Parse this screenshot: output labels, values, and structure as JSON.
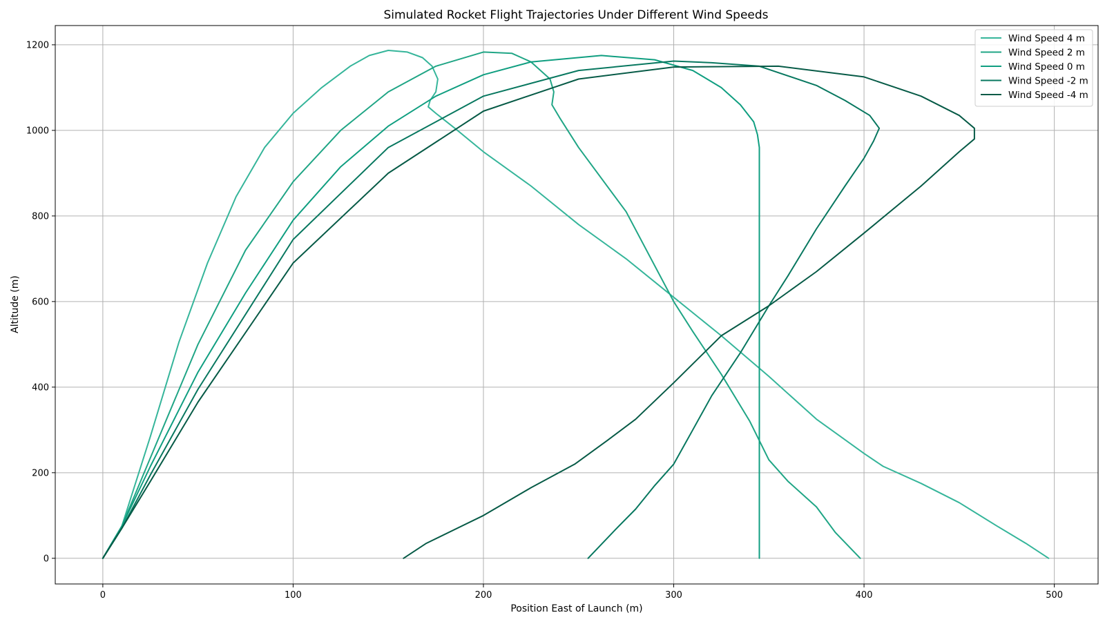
{
  "chart_data": {
    "type": "line",
    "title": "Simulated Rocket Flight Trajectories Under Different Wind Speeds",
    "xlabel": "Position East of Launch (m)",
    "ylabel": "Altitude (m)",
    "xlim": [
      -25,
      523
    ],
    "ylim": [
      -60,
      1245
    ],
    "xticks": [
      0,
      100,
      200,
      300,
      400,
      500
    ],
    "yticks": [
      0,
      200,
      400,
      600,
      800,
      1000,
      1200
    ],
    "grid": true,
    "legend_position": "top-right",
    "series": [
      {
        "name": "Wind Speed 4 m",
        "color": "#35b59a",
        "points": [
          [
            0,
            0
          ],
          [
            10,
            75
          ],
          [
            25,
            285
          ],
          [
            40,
            505
          ],
          [
            55,
            690
          ],
          [
            70,
            845
          ],
          [
            85,
            960
          ],
          [
            100,
            1040
          ],
          [
            115,
            1100
          ],
          [
            130,
            1150
          ],
          [
            140,
            1175
          ],
          [
            150,
            1187
          ],
          [
            160,
            1183
          ],
          [
            168,
            1170
          ],
          [
            173,
            1150
          ],
          [
            176,
            1120
          ],
          [
            175,
            1090
          ],
          [
            172,
            1070
          ],
          [
            171,
            1055
          ],
          [
            175,
            1040
          ],
          [
            185,
            1005
          ],
          [
            200,
            950
          ],
          [
            225,
            870
          ],
          [
            250,
            780
          ],
          [
            275,
            700
          ],
          [
            300,
            610
          ],
          [
            325,
            520
          ],
          [
            350,
            425
          ],
          [
            375,
            325
          ],
          [
            400,
            245
          ],
          [
            410,
            215
          ],
          [
            430,
            175
          ],
          [
            450,
            130
          ],
          [
            470,
            75
          ],
          [
            485,
            35
          ],
          [
            497,
            0
          ]
        ]
      },
      {
        "name": "Wind Speed 2 m",
        "color": "#1fa585",
        "points": [
          [
            0,
            0
          ],
          [
            10,
            75
          ],
          [
            25,
            235
          ],
          [
            50,
            500
          ],
          [
            75,
            720
          ],
          [
            100,
            880
          ],
          [
            125,
            1000
          ],
          [
            150,
            1090
          ],
          [
            175,
            1150
          ],
          [
            200,
            1183
          ],
          [
            215,
            1180
          ],
          [
            225,
            1160
          ],
          [
            235,
            1120
          ],
          [
            237,
            1090
          ],
          [
            236,
            1060
          ],
          [
            240,
            1030
          ],
          [
            250,
            960
          ],
          [
            275,
            810
          ],
          [
            300,
            600
          ],
          [
            310,
            530
          ],
          [
            325,
            430
          ],
          [
            340,
            320
          ],
          [
            350,
            230
          ],
          [
            360,
            180
          ],
          [
            375,
            120
          ],
          [
            385,
            60
          ],
          [
            398,
            0
          ]
        ]
      },
      {
        "name": "Wind Speed 0 m",
        "color": "#0f9e80",
        "points": [
          [
            0,
            0
          ],
          [
            10,
            75
          ],
          [
            25,
            215
          ],
          [
            50,
            435
          ],
          [
            75,
            620
          ],
          [
            100,
            790
          ],
          [
            125,
            915
          ],
          [
            150,
            1010
          ],
          [
            175,
            1080
          ],
          [
            200,
            1130
          ],
          [
            225,
            1160
          ],
          [
            262,
            1175
          ],
          [
            290,
            1165
          ],
          [
            310,
            1140
          ],
          [
            325,
            1100
          ],
          [
            335,
            1060
          ],
          [
            342,
            1020
          ],
          [
            344,
            990
          ],
          [
            345,
            960
          ],
          [
            345,
            600
          ],
          [
            345,
            0
          ]
        ]
      },
      {
        "name": "Wind Speed -2 m",
        "color": "#07775f",
        "points": [
          [
            0,
            0
          ],
          [
            10,
            70
          ],
          [
            25,
            195
          ],
          [
            50,
            395
          ],
          [
            100,
            745
          ],
          [
            150,
            960
          ],
          [
            200,
            1080
          ],
          [
            250,
            1140
          ],
          [
            300,
            1162
          ],
          [
            320,
            1158
          ],
          [
            345,
            1150
          ],
          [
            375,
            1105
          ],
          [
            390,
            1070
          ],
          [
            403,
            1035
          ],
          [
            408,
            1005
          ],
          [
            405,
            975
          ],
          [
            400,
            935
          ],
          [
            390,
            870
          ],
          [
            375,
            770
          ],
          [
            360,
            660
          ],
          [
            350,
            590
          ],
          [
            335,
            480
          ],
          [
            320,
            380
          ],
          [
            310,
            300
          ],
          [
            300,
            220
          ],
          [
            290,
            170
          ],
          [
            280,
            115
          ],
          [
            270,
            70
          ],
          [
            255,
            0
          ]
        ]
      },
      {
        "name": "Wind Speed -4 m",
        "color": "#065a46",
        "points": [
          [
            0,
            0
          ],
          [
            10,
            70
          ],
          [
            25,
            180
          ],
          [
            50,
            365
          ],
          [
            100,
            690
          ],
          [
            150,
            900
          ],
          [
            200,
            1045
          ],
          [
            250,
            1120
          ],
          [
            300,
            1148
          ],
          [
            355,
            1150
          ],
          [
            400,
            1125
          ],
          [
            430,
            1080
          ],
          [
            450,
            1035
          ],
          [
            458,
            1005
          ],
          [
            458,
            980
          ],
          [
            450,
            950
          ],
          [
            430,
            870
          ],
          [
            400,
            760
          ],
          [
            375,
            670
          ],
          [
            350,
            590
          ],
          [
            325,
            520
          ],
          [
            300,
            410
          ],
          [
            280,
            325
          ],
          [
            265,
            275
          ],
          [
            248,
            220
          ],
          [
            225,
            165
          ],
          [
            200,
            100
          ],
          [
            170,
            35
          ],
          [
            158,
            0
          ]
        ]
      }
    ]
  }
}
